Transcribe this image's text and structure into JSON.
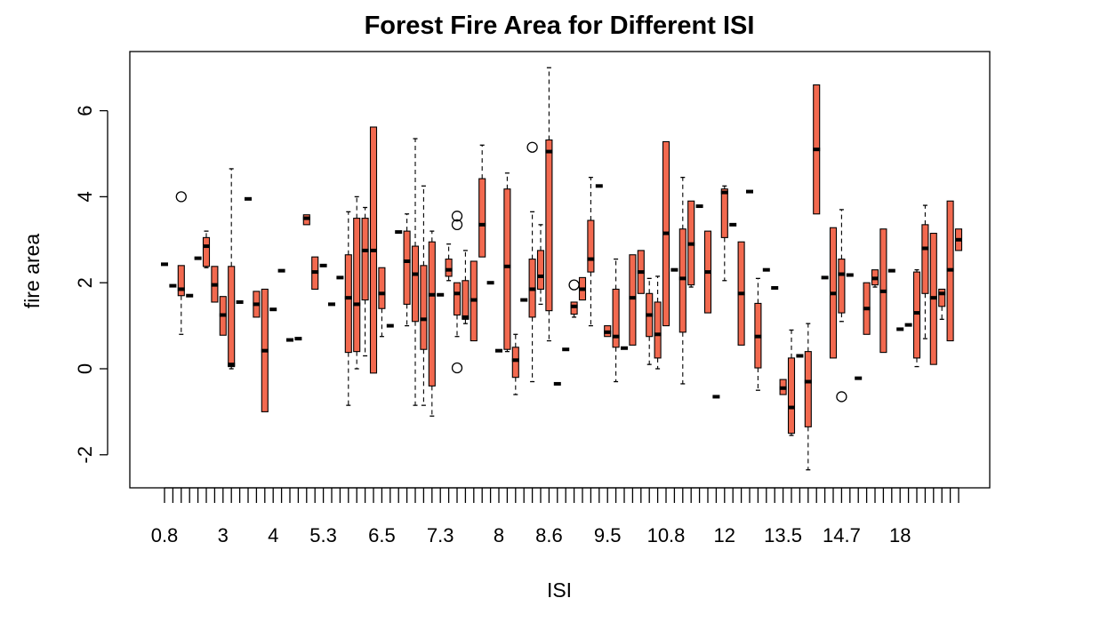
{
  "chart_data": {
    "type": "box",
    "title": "Forest Fire Area for Different ISI",
    "xlabel": "ISI",
    "ylabel": "fire area",
    "ylim": [
      -2.8,
      7.2
    ],
    "yticks": [
      -2,
      0,
      2,
      4,
      6
    ],
    "x_tick_count": 96,
    "x_tick_labels": [
      {
        "index": 0,
        "label": "0.8"
      },
      {
        "index": 7,
        "label": "3"
      },
      {
        "index": 13,
        "label": "4"
      },
      {
        "index": 19,
        "label": "5.3"
      },
      {
        "index": 26,
        "label": "6.5"
      },
      {
        "index": 33,
        "label": "7.3"
      },
      {
        "index": 40,
        "label": "8"
      },
      {
        "index": 46,
        "label": "8.6"
      },
      {
        "index": 53,
        "label": "9.5"
      },
      {
        "index": 60,
        "label": "10.8"
      },
      {
        "index": 67,
        "label": "12"
      },
      {
        "index": 74,
        "label": "13.5"
      },
      {
        "index": 81,
        "label": "14.7"
      },
      {
        "index": 88,
        "label": "18"
      }
    ],
    "box_color": "#f2694f",
    "boxes": [
      {
        "i": 0,
        "q1": 2.43,
        "med": 2.43,
        "q3": 2.43
      },
      {
        "i": 1,
        "q1": 1.93,
        "med": 1.93,
        "q3": 1.93
      },
      {
        "i": 2,
        "low": 0.8,
        "q1": 1.7,
        "med": 1.85,
        "q3": 2.4,
        "high": 2.4,
        "out": [
          4.0
        ]
      },
      {
        "i": 3,
        "q1": 1.7,
        "med": 1.7,
        "q3": 1.7
      },
      {
        "i": 4,
        "q1": 2.57,
        "med": 2.57,
        "q3": 2.57
      },
      {
        "i": 5,
        "low": 2.35,
        "q1": 2.38,
        "med": 2.85,
        "q3": 3.05,
        "high": 3.2
      },
      {
        "i": 6,
        "low": 1.55,
        "q1": 1.55,
        "med": 1.95,
        "q3": 2.38,
        "high": 2.38
      },
      {
        "i": 7,
        "low": 0.78,
        "q1": 0.78,
        "med": 1.25,
        "q3": 1.68,
        "high": 1.68
      },
      {
        "i": 8,
        "low": 0.0,
        "q1": 0.05,
        "med": 0.1,
        "q3": 2.38,
        "high": 4.65
      },
      {
        "i": 9,
        "q1": 1.55,
        "med": 1.55,
        "q3": 1.55
      },
      {
        "i": 10,
        "q1": 3.95,
        "med": 3.95,
        "q3": 3.95
      },
      {
        "i": 11,
        "low": 1.2,
        "q1": 1.2,
        "med": 1.5,
        "q3": 1.8,
        "high": 1.8
      },
      {
        "i": 12,
        "low": -1.0,
        "q1": -1.0,
        "med": 0.42,
        "q3": 1.85,
        "high": 1.85
      },
      {
        "i": 13,
        "q1": 1.38,
        "med": 1.38,
        "q3": 1.38
      },
      {
        "i": 14,
        "q1": 2.28,
        "med": 2.28,
        "q3": 2.28
      },
      {
        "i": 15,
        "q1": 0.67,
        "med": 0.67,
        "q3": 0.67
      },
      {
        "i": 16,
        "q1": 0.7,
        "med": 0.7,
        "q3": 0.7
      },
      {
        "i": 17,
        "q1": 3.35,
        "med": 3.5,
        "q3": 3.58
      },
      {
        "i": 18,
        "low": 1.85,
        "q1": 1.85,
        "med": 2.25,
        "q3": 2.6,
        "high": 2.6
      },
      {
        "i": 19,
        "q1": 2.4,
        "med": 2.4,
        "q3": 2.4
      },
      {
        "i": 20,
        "q1": 1.5,
        "med": 1.5,
        "q3": 1.5
      },
      {
        "i": 21,
        "q1": 2.12,
        "med": 2.12,
        "q3": 2.12
      },
      {
        "i": 22,
        "low": -0.85,
        "q1": 0.38,
        "med": 1.65,
        "q3": 2.65,
        "high": 3.65
      },
      {
        "i": 23,
        "low": 0.0,
        "q1": 0.4,
        "med": 1.5,
        "q3": 3.5,
        "high": 4.0
      },
      {
        "i": 24,
        "low": 0.3,
        "q1": 1.6,
        "med": 2.75,
        "q3": 3.5,
        "high": 3.75
      },
      {
        "i": 25,
        "low": -0.1,
        "q1": -0.1,
        "med": 2.75,
        "q3": 5.62,
        "high": 5.62
      },
      {
        "i": 26,
        "low": 0.75,
        "q1": 1.4,
        "med": 1.75,
        "q3": 2.35,
        "high": 2.35
      },
      {
        "i": 27,
        "q1": 1.0,
        "med": 1.0,
        "q3": 1.0
      },
      {
        "i": 28,
        "q1": 3.18,
        "med": 3.18,
        "q3": 3.18
      },
      {
        "i": 29,
        "low": 1.0,
        "q1": 1.5,
        "med": 2.5,
        "q3": 3.2,
        "high": 3.6
      },
      {
        "i": 30,
        "low": -0.85,
        "q1": 1.1,
        "med": 2.2,
        "q3": 2.85,
        "high": 5.35
      },
      {
        "i": 31,
        "low": -0.85,
        "q1": 0.45,
        "med": 1.15,
        "q3": 2.4,
        "high": 4.25
      },
      {
        "i": 32,
        "low": -1.1,
        "q1": -0.4,
        "med": 1.72,
        "q3": 2.95,
        "high": 3.2
      },
      {
        "i": 33,
        "q1": 1.72,
        "med": 1.72,
        "q3": 1.72
      },
      {
        "i": 34,
        "low": 2.05,
        "q1": 2.15,
        "med": 2.3,
        "q3": 2.55,
        "high": 2.9
      },
      {
        "i": 35,
        "low": 0.75,
        "q1": 1.25,
        "med": 1.75,
        "q3": 2.0,
        "high": 2.0,
        "out": [
          3.55,
          3.35,
          0.02
        ]
      },
      {
        "i": 36,
        "low": 1.05,
        "q1": 1.15,
        "med": 1.2,
        "q3": 2.05,
        "high": 2.75
      },
      {
        "i": 37,
        "low": 0.65,
        "q1": 0.65,
        "med": 1.6,
        "q3": 2.5,
        "high": 2.5
      },
      {
        "i": 38,
        "low": 2.6,
        "q1": 2.6,
        "med": 3.35,
        "q3": 4.42,
        "high": 5.2
      },
      {
        "i": 39,
        "q1": 2.0,
        "med": 2.0,
        "q3": 2.0
      },
      {
        "i": 40,
        "q1": 0.42,
        "med": 0.42,
        "q3": 0.42
      },
      {
        "i": 41,
        "low": 0.4,
        "q1": 0.45,
        "med": 2.38,
        "q3": 4.18,
        "high": 4.55
      },
      {
        "i": 42,
        "low": -0.6,
        "q1": -0.2,
        "med": 0.2,
        "q3": 0.5,
        "high": 0.8
      },
      {
        "i": 43,
        "q1": 1.6,
        "med": 1.6,
        "q3": 1.6
      },
      {
        "i": 44,
        "low": -0.3,
        "q1": 1.2,
        "med": 1.85,
        "q3": 2.55,
        "high": 3.65,
        "out": [
          5.15
        ]
      },
      {
        "i": 45,
        "low": 1.5,
        "q1": 1.85,
        "med": 2.15,
        "q3": 2.75,
        "high": 3.35
      },
      {
        "i": 46,
        "low": 0.65,
        "q1": 1.35,
        "med": 5.05,
        "q3": 5.32,
        "high": 7.0
      },
      {
        "i": 47,
        "q1": -0.35,
        "med": -0.35,
        "q3": -0.35
      },
      {
        "i": 48,
        "q1": 0.45,
        "med": 0.45,
        "q3": 0.45
      },
      {
        "i": 49,
        "low": 1.2,
        "q1": 1.27,
        "med": 1.45,
        "q3": 1.55,
        "high": 1.55,
        "out": [
          1.95
        ]
      },
      {
        "i": 50,
        "low": 1.6,
        "q1": 1.6,
        "med": 1.85,
        "q3": 2.12,
        "high": 2.12
      },
      {
        "i": 51,
        "low": 1.0,
        "q1": 2.25,
        "med": 2.55,
        "q3": 3.45,
        "high": 4.45
      },
      {
        "i": 52,
        "q1": 4.25,
        "med": 4.25,
        "q3": 4.25
      },
      {
        "i": 53,
        "low": 0.75,
        "q1": 0.75,
        "med": 0.85,
        "q3": 1.0,
        "high": 1.0
      },
      {
        "i": 54,
        "low": -0.3,
        "q1": 0.5,
        "med": 0.75,
        "q3": 1.85,
        "high": 2.55
      },
      {
        "i": 55,
        "q1": 0.48,
        "med": 0.48,
        "q3": 0.48
      },
      {
        "i": 56,
        "low": 0.55,
        "q1": 0.55,
        "med": 1.65,
        "q3": 2.65,
        "high": 2.65
      },
      {
        "i": 57,
        "low": 1.75,
        "q1": 1.75,
        "med": 2.25,
        "q3": 2.75,
        "high": 2.75
      },
      {
        "i": 58,
        "low": 0.1,
        "q1": 0.75,
        "med": 1.25,
        "q3": 1.75,
        "high": 2.1
      },
      {
        "i": 59,
        "low": 0.0,
        "q1": 0.25,
        "med": 0.8,
        "q3": 1.55,
        "high": 2.15
      },
      {
        "i": 60,
        "low": 1.0,
        "q1": 1.0,
        "med": 3.15,
        "q3": 5.28,
        "high": 5.28
      },
      {
        "i": 61,
        "q1": 2.3,
        "med": 2.3,
        "q3": 2.3
      },
      {
        "i": 62,
        "low": -0.35,
        "q1": 0.85,
        "med": 2.1,
        "q3": 3.25,
        "high": 4.45
      },
      {
        "i": 63,
        "low": 1.9,
        "q1": 1.95,
        "med": 2.9,
        "q3": 3.9,
        "high": 3.9
      },
      {
        "i": 64,
        "q1": 3.78,
        "med": 3.78,
        "q3": 3.78
      },
      {
        "i": 65,
        "low": 1.3,
        "q1": 1.3,
        "med": 2.25,
        "q3": 3.2,
        "high": 3.2
      },
      {
        "i": 66,
        "q1": -0.65,
        "med": -0.65,
        "q3": -0.65
      },
      {
        "i": 67,
        "low": 2.05,
        "q1": 3.05,
        "med": 4.1,
        "q3": 4.18,
        "high": 4.25
      },
      {
        "i": 68,
        "q1": 3.35,
        "med": 3.35,
        "q3": 3.35
      },
      {
        "i": 69,
        "low": 0.55,
        "q1": 0.55,
        "med": 1.75,
        "q3": 2.95,
        "high": 2.95
      },
      {
        "i": 70,
        "q1": 4.12,
        "med": 4.12,
        "q3": 4.12
      },
      {
        "i": 71,
        "low": -0.5,
        "q1": 0.02,
        "med": 0.75,
        "q3": 1.52,
        "high": 2.1
      },
      {
        "i": 72,
        "q1": 2.3,
        "med": 2.3,
        "q3": 2.3
      },
      {
        "i": 73,
        "q1": 1.88,
        "med": 1.88,
        "q3": 1.88
      },
      {
        "i": 74,
        "low": -0.6,
        "q1": -0.6,
        "med": -0.45,
        "q3": -0.25,
        "high": -0.25
      },
      {
        "i": 75,
        "low": -1.55,
        "q1": -1.5,
        "med": -0.9,
        "q3": 0.25,
        "high": 0.9
      },
      {
        "i": 76,
        "q1": 0.3,
        "med": 0.3,
        "q3": 0.3
      },
      {
        "i": 77,
        "low": -2.35,
        "q1": -1.35,
        "med": -0.3,
        "q3": 0.4,
        "high": 1.05
      },
      {
        "i": 78,
        "low": 3.6,
        "q1": 3.6,
        "med": 5.1,
        "q3": 6.6,
        "high": 6.6
      },
      {
        "i": 79,
        "q1": 2.12,
        "med": 2.12,
        "q3": 2.12
      },
      {
        "i": 80,
        "low": 0.25,
        "q1": 0.25,
        "med": 1.75,
        "q3": 3.28,
        "high": 3.28
      },
      {
        "i": 81,
        "low": 1.1,
        "q1": 1.3,
        "med": 2.2,
        "q3": 2.55,
        "high": 3.7,
        "out": [
          -0.65
        ]
      },
      {
        "i": 82,
        "q1": 2.18,
        "med": 2.18,
        "q3": 2.18
      },
      {
        "i": 83,
        "q1": -0.22,
        "med": -0.22,
        "q3": -0.22
      },
      {
        "i": 84,
        "low": 0.8,
        "q1": 0.8,
        "med": 1.4,
        "q3": 2.0,
        "high": 2.0
      },
      {
        "i": 85,
        "low": 1.9,
        "q1": 1.95,
        "med": 2.1,
        "q3": 2.3,
        "high": 2.3
      },
      {
        "i": 86,
        "low": 0.38,
        "q1": 0.38,
        "med": 1.8,
        "q3": 3.25,
        "high": 3.25
      },
      {
        "i": 87,
        "q1": 2.28,
        "med": 2.28,
        "q3": 2.28
      },
      {
        "i": 88,
        "q1": 0.92,
        "med": 0.92,
        "q3": 0.92
      },
      {
        "i": 89,
        "q1": 1.02,
        "med": 1.02,
        "q3": 1.02
      },
      {
        "i": 90,
        "low": 0.05,
        "q1": 0.25,
        "med": 1.3,
        "q3": 2.25,
        "high": 2.3
      },
      {
        "i": 91,
        "low": 0.7,
        "q1": 1.75,
        "med": 2.8,
        "q3": 3.35,
        "high": 3.8
      },
      {
        "i": 92,
        "low": 0.1,
        "q1": 0.1,
        "med": 1.65,
        "q3": 3.15,
        "high": 3.15
      },
      {
        "i": 93,
        "low": 1.15,
        "q1": 1.45,
        "med": 1.75,
        "q3": 1.85,
        "high": 1.85
      },
      {
        "i": 94,
        "low": 0.65,
        "q1": 0.65,
        "med": 2.3,
        "q3": 3.9,
        "high": 3.9
      },
      {
        "i": 95,
        "low": 2.75,
        "q1": 2.75,
        "med": 3.0,
        "q3": 3.25,
        "high": 3.25
      }
    ]
  }
}
